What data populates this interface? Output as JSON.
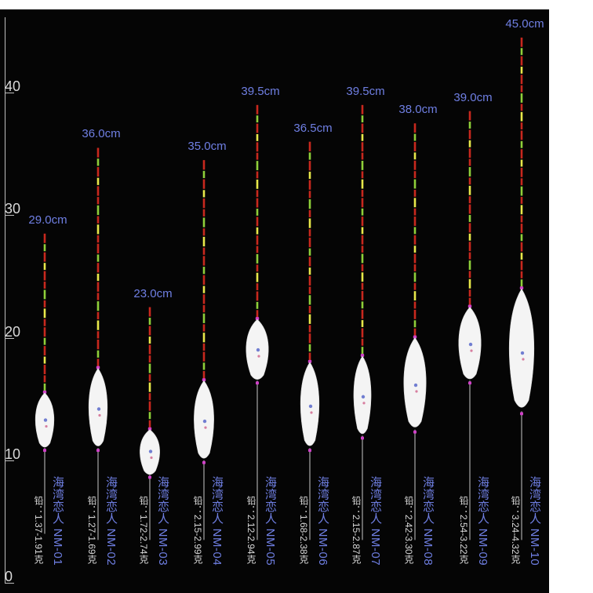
{
  "scale": {
    "ticks": [
      "0",
      "10",
      "20",
      "30",
      "40"
    ]
  },
  "colors": {
    "panel": "#050505",
    "length_label": "#6f7fe3",
    "name_label": "#6f7fe3",
    "weight_label": "#d8d8d8",
    "tip_red": "#c8281e",
    "tip_green": "#8fcf3a",
    "body": "#f4f4f4",
    "ring": "#d040c8"
  },
  "floats": [
    {
      "length": "29.0cm",
      "name": "海湾恋人 NM-01",
      "weight": "铅：1.37-1.91克",
      "tip_top": 28.5,
      "body_top": 15.5,
      "body_bottom": 11.0,
      "stem_bottom": 4.0
    },
    {
      "length": "36.0cm",
      "name": "海湾恋人 NM-02",
      "weight": "铅：1.27-1.69克",
      "tip_top": 35.5,
      "body_top": 17.5,
      "body_bottom": 11.0,
      "stem_bottom": 3.5
    },
    {
      "length": "23.0cm",
      "name": "海湾恋人 NM-03",
      "weight": "铅：1.72-2.74克",
      "tip_top": 22.5,
      "body_top": 12.5,
      "body_bottom": 8.8,
      "stem_bottom": 3.5
    },
    {
      "length": "35.0cm",
      "name": "海湾恋人 NM-04",
      "weight": "铅：2.15-2.99克",
      "tip_top": 34.5,
      "body_top": 16.5,
      "body_bottom": 10.0,
      "stem_bottom": 3.5
    },
    {
      "length": "39.5cm",
      "name": "海湾恋人 NM-05",
      "weight": "铅：2.12-2.94克",
      "tip_top": 39.0,
      "body_top": 21.5,
      "body_bottom": 16.5,
      "stem_bottom": 3.5
    },
    {
      "length": "36.5cm",
      "name": "海湾恋人 NM-06",
      "weight": "铅：1.68-2.38克",
      "tip_top": 36.0,
      "body_top": 18.0,
      "body_bottom": 11.0,
      "stem_bottom": 3.5
    },
    {
      "length": "39.5cm",
      "name": "海湾恋人 NM-07",
      "weight": "铅：2.15-2.87克",
      "tip_top": 39.0,
      "body_top": 18.5,
      "body_bottom": 12.0,
      "stem_bottom": 3.5
    },
    {
      "length": "38.0cm",
      "name": "海湾恋人 NM-08",
      "weight": "铅：2.42-3.30克",
      "tip_top": 37.5,
      "body_top": 20.0,
      "body_bottom": 12.5,
      "stem_bottom": 3.5
    },
    {
      "length": "39.0cm",
      "name": "海湾恋人 NM-09",
      "weight": "铅：2.54-3.22克",
      "tip_top": 38.5,
      "body_top": 22.5,
      "body_bottom": 16.5,
      "stem_bottom": 3.5
    },
    {
      "length": "45.0cm",
      "name": "海湾恋人 NM-10",
      "weight": "铅：3.24-4.32克",
      "tip_top": 44.5,
      "body_top": 24.0,
      "body_bottom": 14.0,
      "stem_bottom": 3.5
    }
  ]
}
